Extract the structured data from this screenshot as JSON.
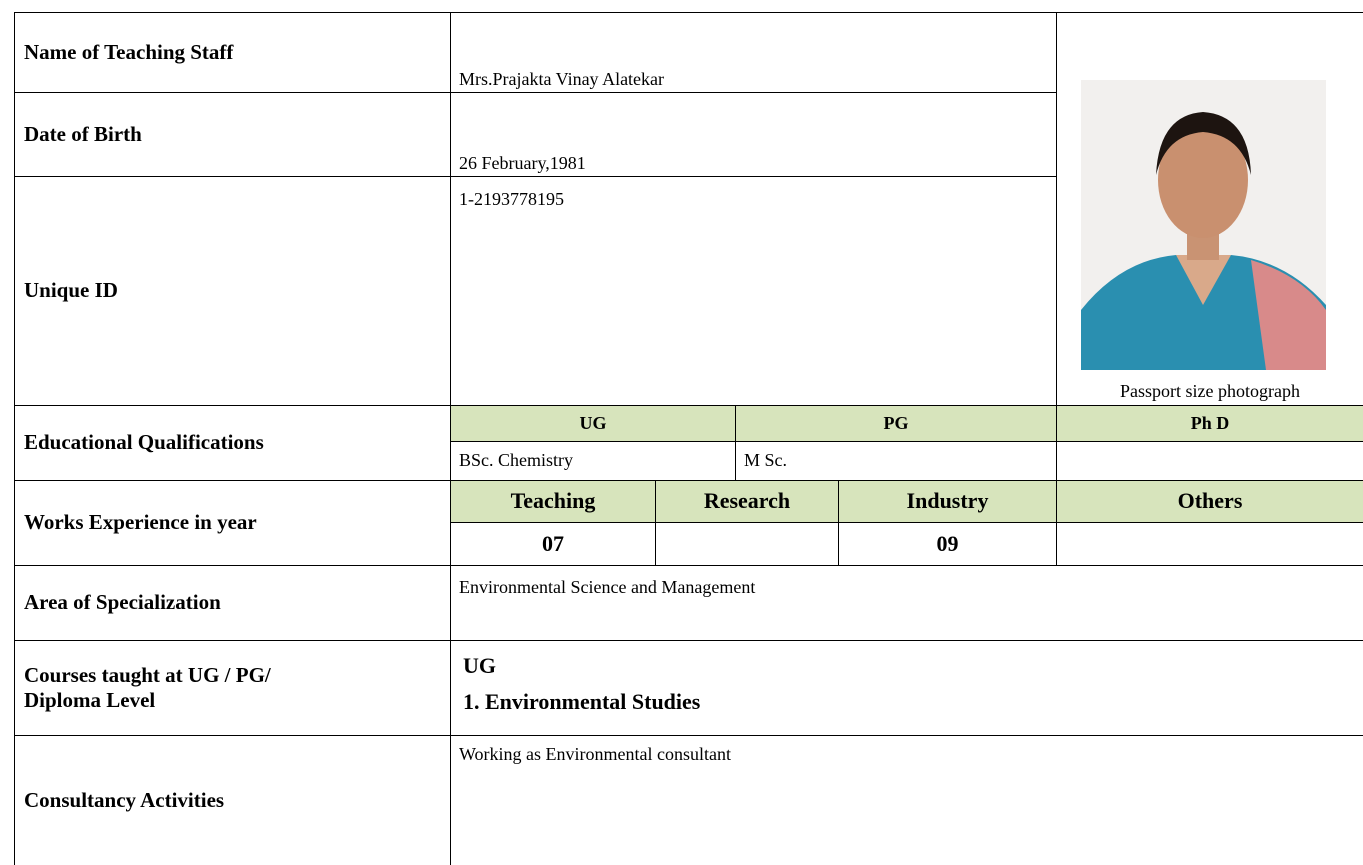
{
  "fields": [
    {
      "label": "Name of Teaching Staff",
      "value": "Mrs.Prajakta Vinay Alatekar"
    },
    {
      "label": "Date of Birth",
      "value": "26 February,1981"
    },
    {
      "label": "Unique ID",
      "value": "1-2193778195"
    }
  ],
  "photo_caption": "Passport size photograph",
  "education": {
    "label": "Educational Qualifications",
    "headers": [
      "UG",
      "PG",
      "Ph D"
    ],
    "values": [
      "BSc. Chemistry",
      "M Sc.",
      null
    ]
  },
  "experience": {
    "label": "Works Experience in year",
    "headers": [
      "Teaching",
      "Research",
      "Industry",
      "Others"
    ],
    "values": [
      "07",
      null,
      "09",
      null
    ]
  },
  "specialization": {
    "label": "Area of Specialization",
    "value": "Environmental Science and Management"
  },
  "courses": {
    "label": "Courses taught at UG / PG/ Diploma Level",
    "level": "UG",
    "items": [
      "1. Environmental Studies"
    ]
  },
  "consultancy": {
    "label": "Consultancy Activities",
    "value": "Working as Environmental consultant"
  }
}
